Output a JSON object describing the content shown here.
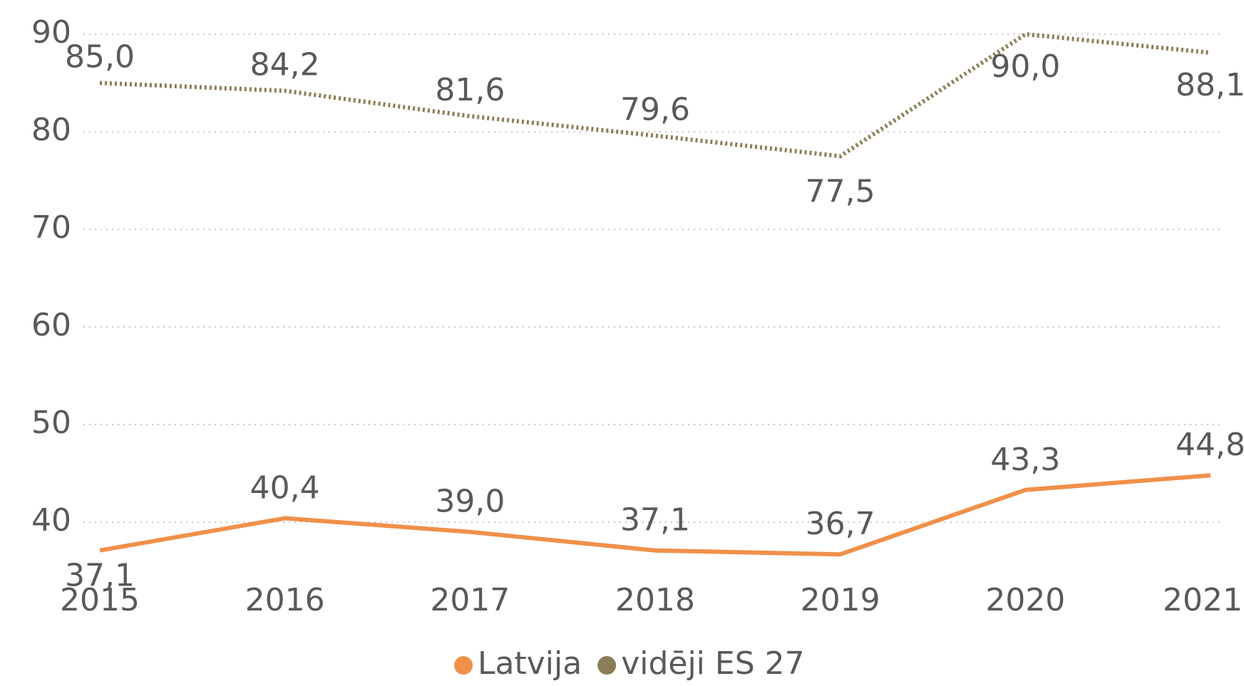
{
  "chart_data": {
    "type": "line",
    "categories": [
      "2015",
      "2016",
      "2017",
      "2018",
      "2019",
      "2020",
      "2021"
    ],
    "series": [
      {
        "name": "Latvija",
        "color": "#f0904a",
        "values": [
          37.1,
          40.4,
          39.0,
          37.1,
          36.7,
          43.3,
          44.8
        ],
        "value_labels": [
          "37,1",
          "40,4",
          "39,0",
          "37,1",
          "36,7",
          "43,3",
          "44,8"
        ]
      },
      {
        "name": "vidēji ES 27",
        "color": "#8b7d57",
        "dashed": true,
        "values": [
          85.0,
          84.2,
          81.6,
          79.6,
          77.5,
          90.0,
          88.1
        ],
        "value_labels": [
          "85,0",
          "84,2",
          "81,6",
          "79,6",
          "77,5",
          "90,0",
          "88,1"
        ]
      }
    ],
    "ylim": [
      35,
      90
    ],
    "yticks": [
      40,
      50,
      60,
      70,
      80,
      90
    ],
    "grid": true,
    "legend": "bottom"
  }
}
